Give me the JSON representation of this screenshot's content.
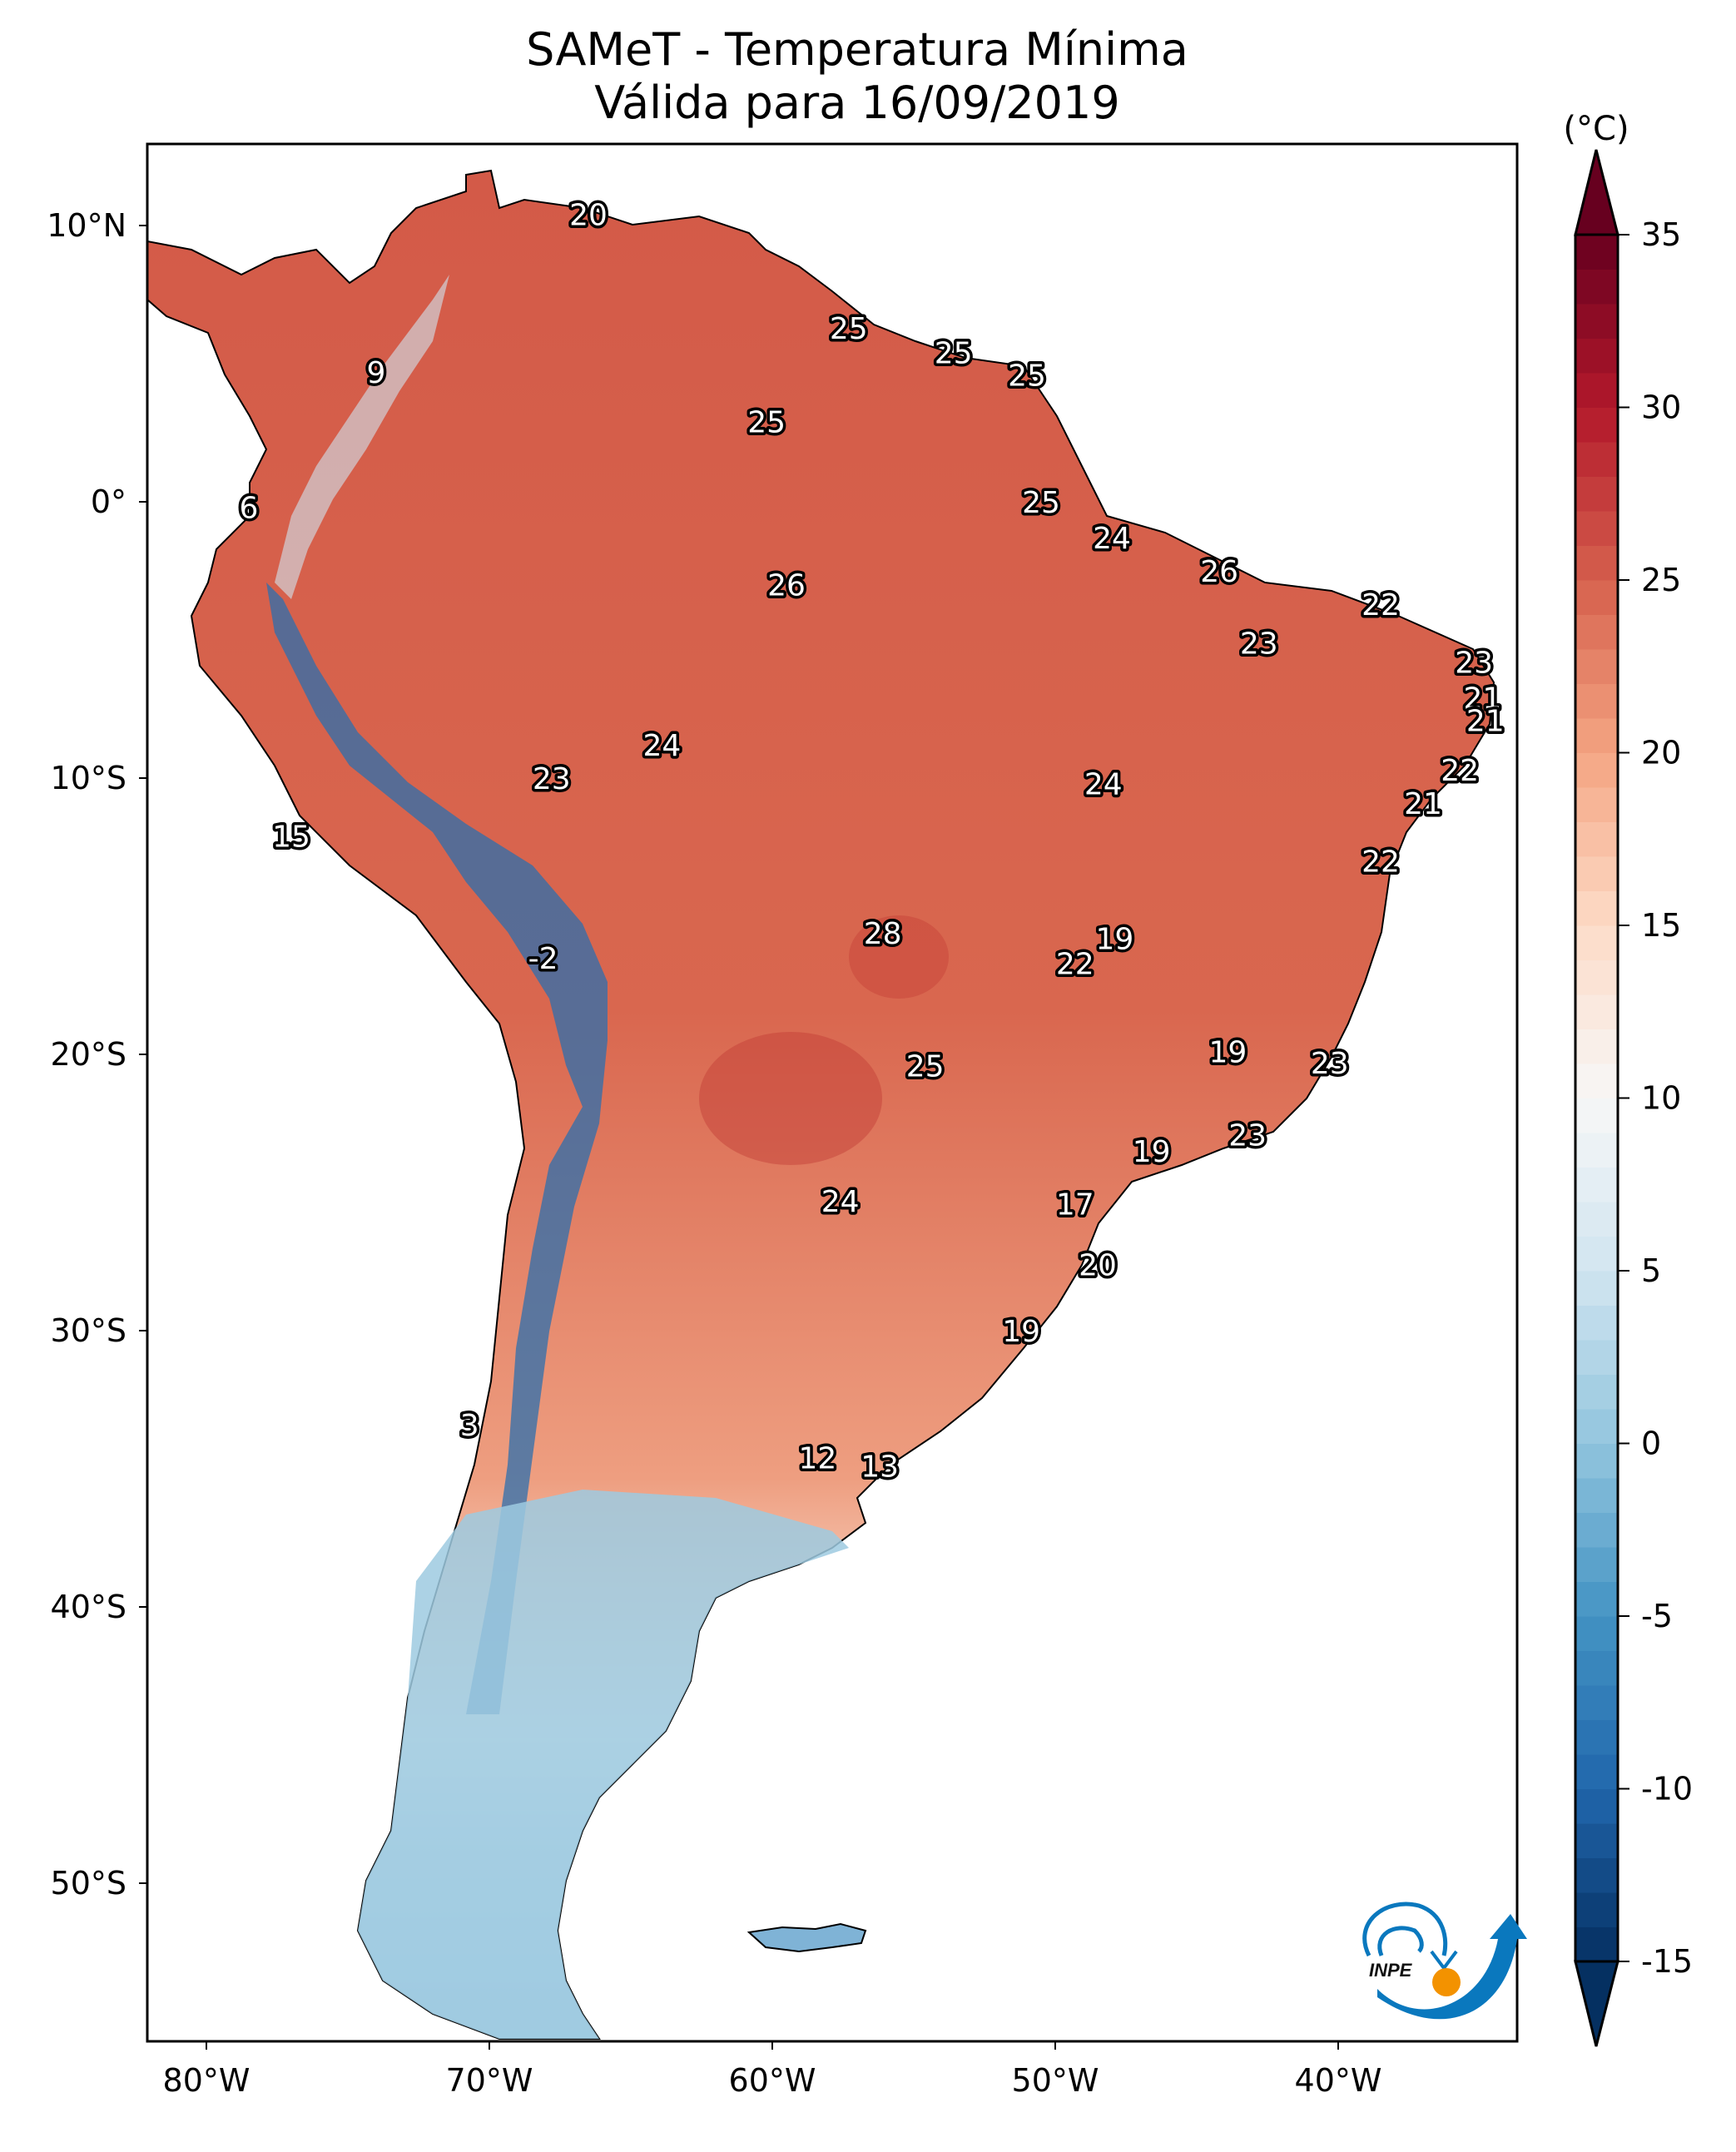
{
  "title": {
    "line1": "SAMeT - Temperatura Mínima",
    "line2": "Válida para 16/09/2019"
  },
  "chart_data": {
    "type": "heatmap",
    "title": "SAMeT - Temperatura Mínima",
    "subtitle": "Válida para 16/09/2019",
    "map_extent": {
      "lon": [
        -83,
        -33
      ],
      "lat": [
        -56,
        12.5
      ]
    },
    "x_ticks": [
      {
        "value": -80,
        "label": "80°W"
      },
      {
        "value": -70,
        "label": "70°W"
      },
      {
        "value": -60,
        "label": "60°W"
      },
      {
        "value": -50,
        "label": "50°W"
      },
      {
        "value": -40,
        "label": "40°W"
      }
    ],
    "y_ticks": [
      {
        "value": 10,
        "label": "10°N"
      },
      {
        "value": 0,
        "label": "0°"
      },
      {
        "value": -10,
        "label": "10°S"
      },
      {
        "value": -20,
        "label": "20°S"
      },
      {
        "value": -30,
        "label": "30°S"
      },
      {
        "value": -40,
        "label": "40°S"
      },
      {
        "value": -50,
        "label": "50°S"
      }
    ],
    "colorbar": {
      "unit": "(°C)",
      "range": [
        -15,
        35
      ],
      "extend": "both",
      "colormap": "RdBu_r",
      "ticks": [
        35,
        30,
        25,
        20,
        15,
        10,
        5,
        0,
        -5,
        -10,
        -15
      ],
      "tick_labels": [
        "35",
        "30",
        "25",
        "20",
        "15",
        "10",
        "5",
        "0",
        "-5",
        "-10",
        "-15"
      ],
      "stops": [
        {
          "v": -15,
          "color": "#053061"
        },
        {
          "v": -10,
          "color": "#2166ac"
        },
        {
          "v": -5,
          "color": "#4393c3"
        },
        {
          "v": 0,
          "color": "#92c5de"
        },
        {
          "v": 5,
          "color": "#d1e5f0"
        },
        {
          "v": 10,
          "color": "#f7f7f7"
        },
        {
          "v": 15,
          "color": "#fddbc7"
        },
        {
          "v": 20,
          "color": "#f4a582"
        },
        {
          "v": 25,
          "color": "#d6604d"
        },
        {
          "v": 30,
          "color": "#b2182b"
        },
        {
          "v": 35,
          "color": "#67001f"
        }
      ]
    },
    "station_labels": [
      {
        "lon": -66.5,
        "lat": 10.4,
        "value": "20"
      },
      {
        "lon": -57.3,
        "lat": 6.3,
        "value": "25"
      },
      {
        "lon": -53.6,
        "lat": 5.4,
        "value": "25"
      },
      {
        "lon": -51.0,
        "lat": 4.6,
        "value": "25"
      },
      {
        "lon": -74.0,
        "lat": 4.7,
        "value": "9"
      },
      {
        "lon": -60.2,
        "lat": 2.9,
        "value": "25"
      },
      {
        "lon": -78.5,
        "lat": -0.2,
        "value": "6"
      },
      {
        "lon": -50.5,
        "lat": 0.0,
        "value": "25"
      },
      {
        "lon": -48.0,
        "lat": -1.3,
        "value": "24"
      },
      {
        "lon": -44.2,
        "lat": -2.5,
        "value": "26"
      },
      {
        "lon": -59.5,
        "lat": -3.0,
        "value": "26"
      },
      {
        "lon": -38.5,
        "lat": -3.7,
        "value": "22"
      },
      {
        "lon": -42.8,
        "lat": -5.1,
        "value": "23"
      },
      {
        "lon": -35.2,
        "lat": -5.8,
        "value": "23"
      },
      {
        "lon": -34.9,
        "lat": -7.1,
        "value": "21"
      },
      {
        "lon": -34.8,
        "lat": -7.9,
        "value": "21"
      },
      {
        "lon": -63.9,
        "lat": -8.8,
        "value": "24"
      },
      {
        "lon": -67.8,
        "lat": -10.0,
        "value": "23"
      },
      {
        "lon": -48.3,
        "lat": -10.2,
        "value": "24"
      },
      {
        "lon": -35.7,
        "lat": -9.7,
        "value": "22"
      },
      {
        "lon": -37.0,
        "lat": -10.9,
        "value": "21"
      },
      {
        "lon": -77.0,
        "lat": -12.1,
        "value": "15"
      },
      {
        "lon": -38.5,
        "lat": -13.0,
        "value": "22"
      },
      {
        "lon": -56.1,
        "lat": -15.6,
        "value": "28"
      },
      {
        "lon": -47.9,
        "lat": -15.8,
        "value": "19"
      },
      {
        "lon": -49.3,
        "lat": -16.7,
        "value": "22"
      },
      {
        "lon": -68.1,
        "lat": -16.5,
        "value": "-2"
      },
      {
        "lon": -43.9,
        "lat": -19.9,
        "value": "19"
      },
      {
        "lon": -40.3,
        "lat": -20.3,
        "value": "23"
      },
      {
        "lon": -54.6,
        "lat": -20.4,
        "value": "25"
      },
      {
        "lon": -43.2,
        "lat": -22.9,
        "value": "23"
      },
      {
        "lon": -46.6,
        "lat": -23.5,
        "value": "19"
      },
      {
        "lon": -57.6,
        "lat": -25.3,
        "value": "24"
      },
      {
        "lon": -49.3,
        "lat": -25.4,
        "value": "17"
      },
      {
        "lon": -48.5,
        "lat": -27.6,
        "value": "20"
      },
      {
        "lon": -51.2,
        "lat": -30.0,
        "value": "19"
      },
      {
        "lon": -70.7,
        "lat": -33.4,
        "value": "3"
      },
      {
        "lon": -58.4,
        "lat": -34.6,
        "value": "12"
      },
      {
        "lon": -56.2,
        "lat": -34.9,
        "value": "13"
      }
    ],
    "grid": false,
    "legend": "colorbar-right"
  },
  "logo": {
    "text": "INPE",
    "name": "inpe-logo"
  }
}
